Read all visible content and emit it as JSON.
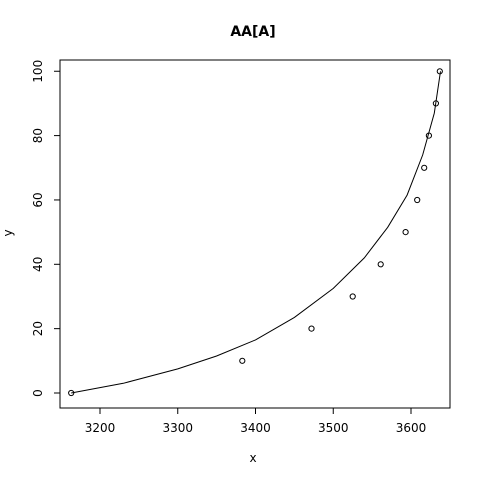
{
  "chart_data": {
    "type": "scatter",
    "title": "AA[A]",
    "xlabel": "x",
    "ylabel": "y",
    "xlim": [
      3160,
      3640
    ],
    "ylim": [
      0,
      100
    ],
    "x_ticks": [
      3200,
      3300,
      3400,
      3500,
      3600
    ],
    "y_ticks": [
      0,
      20,
      40,
      60,
      80,
      100
    ],
    "grid": false,
    "series": [
      {
        "type": "scatter",
        "marker": "open-circle",
        "points": [
          {
            "x": 3163,
            "y": 0
          },
          {
            "x": 3383,
            "y": 10
          },
          {
            "x": 3472,
            "y": 20
          },
          {
            "x": 3525,
            "y": 30
          },
          {
            "x": 3561,
            "y": 40
          },
          {
            "x": 3593,
            "y": 50
          },
          {
            "x": 3608,
            "y": 60
          },
          {
            "x": 3617,
            "y": 70
          },
          {
            "x": 3623,
            "y": 80
          },
          {
            "x": 3632,
            "y": 90
          },
          {
            "x": 3637,
            "y": 100
          }
        ]
      },
      {
        "type": "line",
        "points": [
          {
            "x": 3163,
            "y": 0
          },
          {
            "x": 3230,
            "y": 3
          },
          {
            "x": 3300,
            "y": 7.5
          },
          {
            "x": 3350,
            "y": 11.5
          },
          {
            "x": 3400,
            "y": 16.5
          },
          {
            "x": 3450,
            "y": 23.5
          },
          {
            "x": 3500,
            "y": 32.5
          },
          {
            "x": 3540,
            "y": 42
          },
          {
            "x": 3570,
            "y": 51.5
          },
          {
            "x": 3595,
            "y": 61.5
          },
          {
            "x": 3615,
            "y": 74
          },
          {
            "x": 3630,
            "y": 87
          },
          {
            "x": 3638,
            "y": 100
          }
        ]
      }
    ]
  }
}
